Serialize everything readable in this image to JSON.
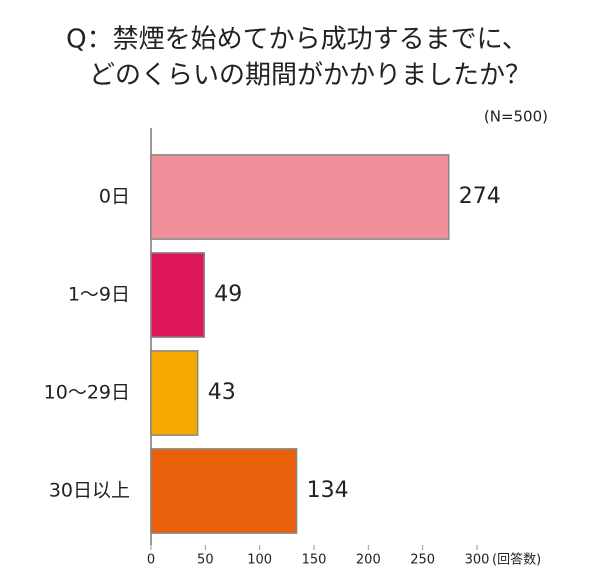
{
  "chart_data": {
    "type": "barh",
    "title": [
      "Q：禁煙を始めてから成功するまでに、",
      "どのくらいの期間がかかりましたか？"
    ],
    "subtitle": "(N=500)",
    "x_label": "(回答数)",
    "categories": [
      "0日",
      "1〜9日",
      "10〜29日",
      "30日以上"
    ],
    "values": [
      274,
      49,
      43,
      134
    ],
    "colors": [
      "#f0909a",
      "#e0185a",
      "#f5a800",
      "#ea5f0a"
    ],
    "xlim": [
      0,
      300
    ],
    "xticks": [
      0,
      50,
      100,
      150,
      200,
      250,
      300
    ]
  }
}
